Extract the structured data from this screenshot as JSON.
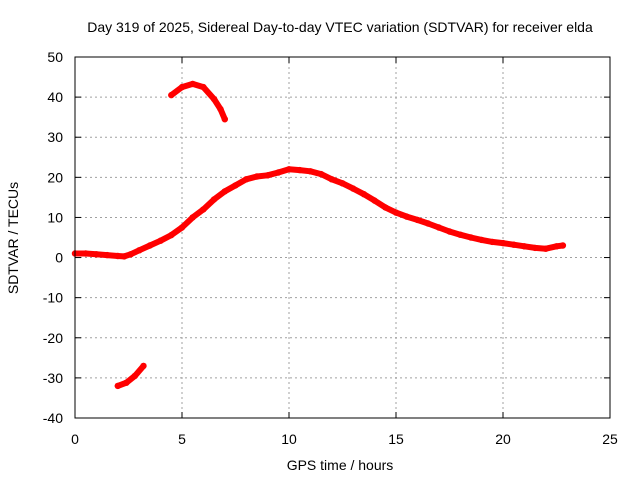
{
  "chart_data": {
    "type": "scatter",
    "title": "Day 319 of 2025, Sidereal Day-to-day VTEC variation (SDTVAR) for receiver elda",
    "xlabel": "GPS time / hours",
    "ylabel": "SDTVAR / TECUs",
    "xlim": [
      0,
      25
    ],
    "ylim": [
      -40,
      50
    ],
    "xticks": [
      0,
      5,
      10,
      15,
      20,
      25
    ],
    "yticks": [
      -40,
      -30,
      -20,
      -10,
      0,
      10,
      20,
      30,
      40,
      50
    ],
    "xtick_labels": [
      "0",
      "5",
      "10",
      "15",
      "20",
      "25"
    ],
    "ytick_labels": [
      "-40",
      "-30",
      "-20",
      "-10",
      "0",
      "10",
      "20",
      "30",
      "40",
      "50"
    ],
    "grid": true,
    "legend": "none",
    "series_color": "#ff0000",
    "series": [
      {
        "name": "main",
        "x": [
          0.0,
          0.5,
          1.0,
          1.5,
          2.0,
          2.3,
          2.6,
          3.0,
          3.5,
          4.0,
          4.5,
          5.0,
          5.5,
          6.0,
          6.5,
          7.0,
          7.5,
          8.0,
          8.5,
          9.0,
          9.5,
          10.0,
          10.5,
          11.0,
          11.5,
          12.0,
          12.5,
          13.0,
          13.5,
          14.0,
          14.5,
          15.0,
          15.5,
          16.0,
          16.5,
          17.0,
          17.5,
          18.0,
          18.5,
          19.0,
          19.5,
          20.0,
          20.5,
          21.0,
          21.5,
          22.0,
          22.5,
          22.8
        ],
        "y": [
          1.0,
          1.0,
          0.8,
          0.6,
          0.4,
          0.3,
          0.8,
          1.8,
          3.0,
          4.2,
          5.6,
          7.5,
          10.0,
          12.0,
          14.5,
          16.5,
          18.0,
          19.5,
          20.2,
          20.5,
          21.2,
          22.0,
          21.8,
          21.5,
          20.8,
          19.5,
          18.5,
          17.2,
          15.8,
          14.2,
          12.5,
          11.2,
          10.2,
          9.4,
          8.5,
          7.5,
          6.5,
          5.7,
          5.0,
          4.4,
          3.9,
          3.6,
          3.2,
          2.8,
          2.4,
          2.2,
          2.8,
          3.0
        ]
      },
      {
        "name": "upper-arc",
        "x": [
          4.5,
          5.0,
          5.5,
          6.0,
          6.5,
          6.8,
          7.0
        ],
        "y": [
          40.5,
          42.5,
          43.3,
          42.5,
          39.5,
          37.0,
          34.5
        ]
      },
      {
        "name": "lower-segment",
        "x": [
          2.0,
          2.4,
          2.8,
          3.2
        ],
        "y": [
          -32.0,
          -31.2,
          -29.5,
          -27.0
        ]
      }
    ]
  }
}
